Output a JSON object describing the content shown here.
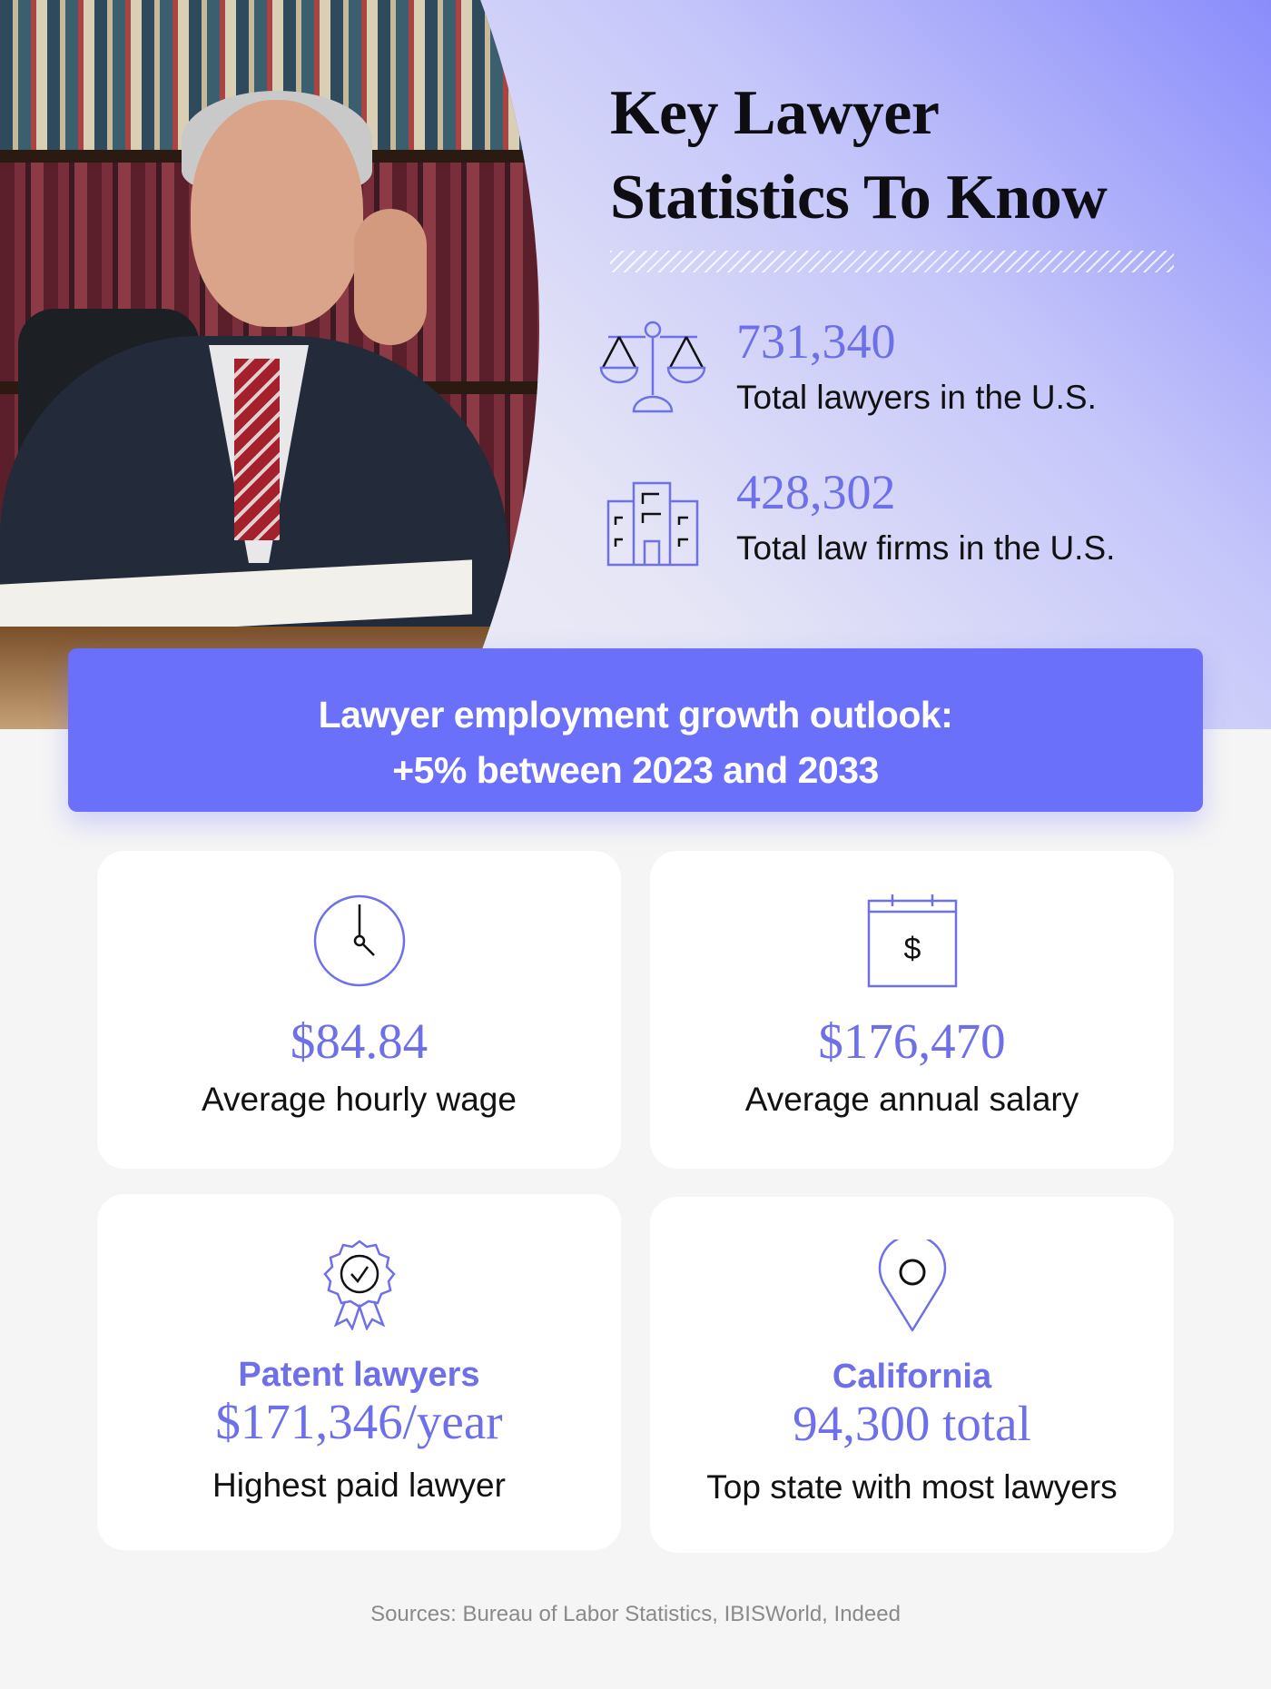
{
  "title": {
    "line1": "Key Lawyer",
    "line2": "Statistics To Know"
  },
  "top_stats": [
    {
      "value": "731,340",
      "label": "Total lawyers in the U.S.",
      "icon": "scales-of-justice-icon"
    },
    {
      "value": "428,302",
      "label": "Total law firms in the U.S.",
      "icon": "buildings-icon"
    }
  ],
  "banner": {
    "line1": "Lawyer employment growth outlook:",
    "line2": "+5% between 2023 and 2033"
  },
  "cards": [
    {
      "value": "$84.84",
      "label": "Average hourly wage",
      "icon": "clock-icon"
    },
    {
      "value": "$176,470",
      "label": "Average annual salary",
      "icon": "calendar-dollar-icon"
    },
    {
      "heading": "Patent lawyers",
      "value": "$171,346/year",
      "label": "Highest paid lawyer",
      "icon": "award-badge-icon"
    },
    {
      "heading": "California",
      "value": "94,300 total",
      "label": "Top state with most lawyers",
      "icon": "location-pin-icon"
    }
  ],
  "sources": "Sources: Bureau of Labor Statistics, IBISWorld, Indeed",
  "colors": {
    "accent": "#6d70e8",
    "banner": "#6b70fb",
    "background": "#f5f5f5"
  }
}
